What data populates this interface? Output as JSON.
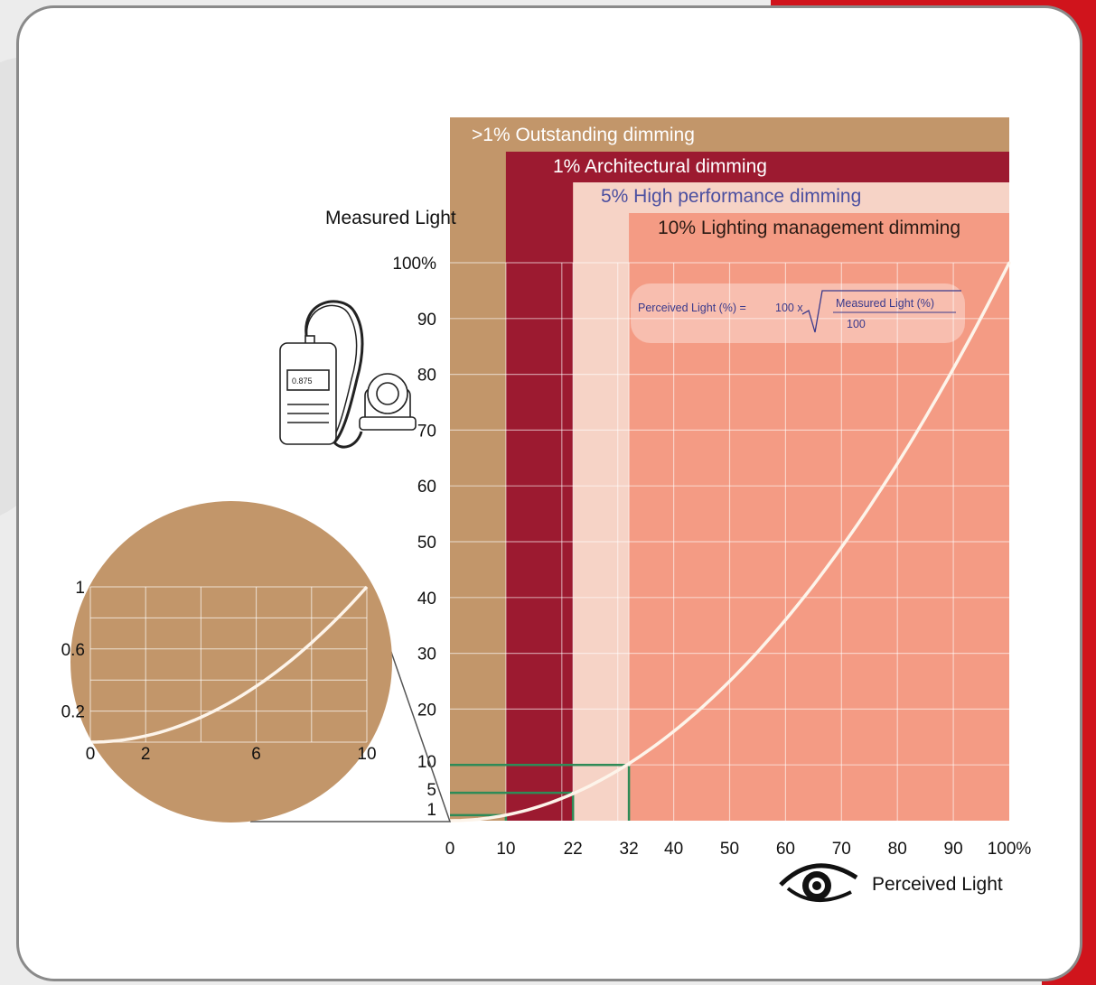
{
  "colors": {
    "outstanding": "#c2966a",
    "architectural": "#9c1a30",
    "high_performance": "#f6d3c6",
    "lighting_management": "#f49b84",
    "curve": "#fdf4ea",
    "marker": "#2e8b57",
    "high_performance_text": "#4b4fa0",
    "formula_text": "#3a3a8c",
    "brand_red": "#d0141c"
  },
  "chart_data": [
    {
      "type": "line",
      "title": "",
      "xlabel": "Perceived Light",
      "ylabel": "Measured Light",
      "xlim": [
        0,
        100
      ],
      "ylim": [
        0,
        100
      ],
      "x_ticks": [
        0,
        10,
        22,
        32,
        40,
        50,
        60,
        70,
        80,
        90,
        100
      ],
      "x_tick_labels": [
        "0",
        "10",
        "22",
        "32",
        "40",
        "50",
        "60",
        "70",
        "80",
        "90",
        "100%"
      ],
      "y_ticks": [
        1,
        5,
        10,
        20,
        30,
        40,
        50,
        60,
        70,
        80,
        90,
        100
      ],
      "y_tick_labels": [
        "1",
        "5",
        "10",
        "20",
        "30",
        "40",
        "50",
        "60",
        "70",
        "80",
        "90",
        "100%"
      ],
      "grid": true,
      "series": [
        {
          "x": [
            0,
            10,
            20,
            22,
            30,
            32,
            40,
            50,
            60,
            70,
            80,
            90,
            100
          ],
          "y": [
            0,
            1,
            4,
            5,
            9,
            10,
            16,
            25,
            36,
            49,
            64,
            81,
            100
          ]
        }
      ],
      "zones": [
        {
          "label": ">1% Outstanding dimming",
          "x_start": 0
        },
        {
          "label": "1% Architectural dimming",
          "x_start": 10
        },
        {
          "label": "5% High performance dimming",
          "x_start": 22
        },
        {
          "label": "10% Lighting management dimming",
          "x_start": 32
        }
      ],
      "markers": [
        {
          "x": 10,
          "y": 1
        },
        {
          "x": 22,
          "y": 5
        },
        {
          "x": 32,
          "y": 10
        }
      ],
      "formula": {
        "lhs": "Perceived Light (%) =",
        "factor": "100 x",
        "numerator": "Measured Light (%)",
        "denominator": "100"
      }
    },
    {
      "type": "line",
      "xlim": [
        0,
        10
      ],
      "ylim": [
        0,
        1
      ],
      "x_tick_labels": [
        "0",
        "2",
        "6",
        "10"
      ],
      "y_tick_labels": [
        "0.2",
        "0.6",
        "1"
      ],
      "grid": true,
      "series": [
        {
          "x": [
            0,
            1,
            2,
            3,
            4,
            5,
            6,
            7,
            8,
            9,
            10
          ],
          "y": [
            0,
            0.01,
            0.04,
            0.09,
            0.16,
            0.25,
            0.36,
            0.49,
            0.64,
            0.81,
            1
          ]
        }
      ]
    }
  ],
  "meter": {
    "display": "0.875"
  }
}
